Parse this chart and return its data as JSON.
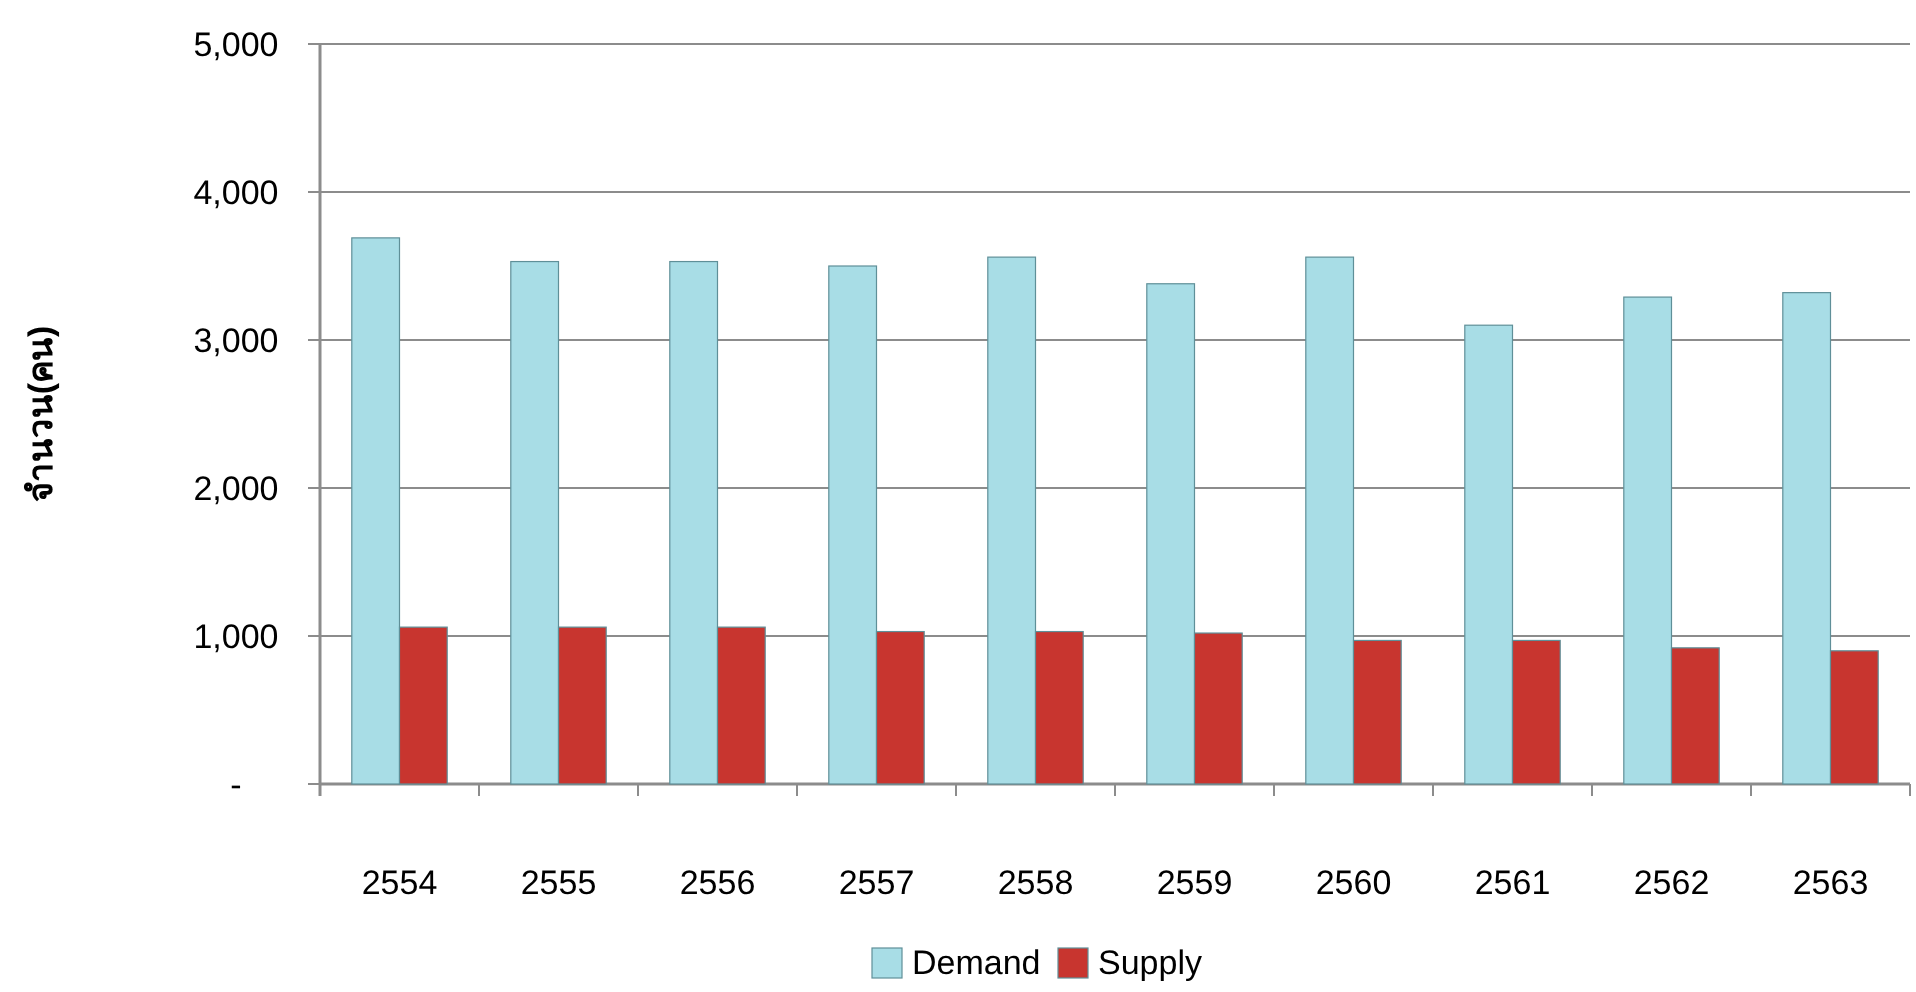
{
  "chart_data": {
    "type": "bar",
    "ylabel": "จำนวน(คน)",
    "categories": [
      "2554",
      "2555",
      "2556",
      "2557",
      "2558",
      "2559",
      "2560",
      "2561",
      "2562",
      "2563"
    ],
    "series": [
      {
        "name": "Demand",
        "color": "#a8dde6",
        "values": [
          3690,
          3530,
          3530,
          3500,
          3560,
          3380,
          3560,
          3100,
          3290,
          3320
        ]
      },
      {
        "name": "Supply",
        "color": "#c8352f",
        "values": [
          1060,
          1060,
          1060,
          1030,
          1030,
          1020,
          970,
          970,
          920,
          900
        ]
      }
    ],
    "ylim": [
      0,
      5000
    ],
    "yticks": [
      {
        "value": 0,
        "label": "-"
      },
      {
        "value": 1000,
        "label": "1,000"
      },
      {
        "value": 2000,
        "label": "2,000"
      },
      {
        "value": 3000,
        "label": "3,000"
      },
      {
        "value": 4000,
        "label": "4,000"
      },
      {
        "value": 5000,
        "label": "5,000"
      }
    ],
    "grid": "y",
    "legend": "bottom"
  }
}
